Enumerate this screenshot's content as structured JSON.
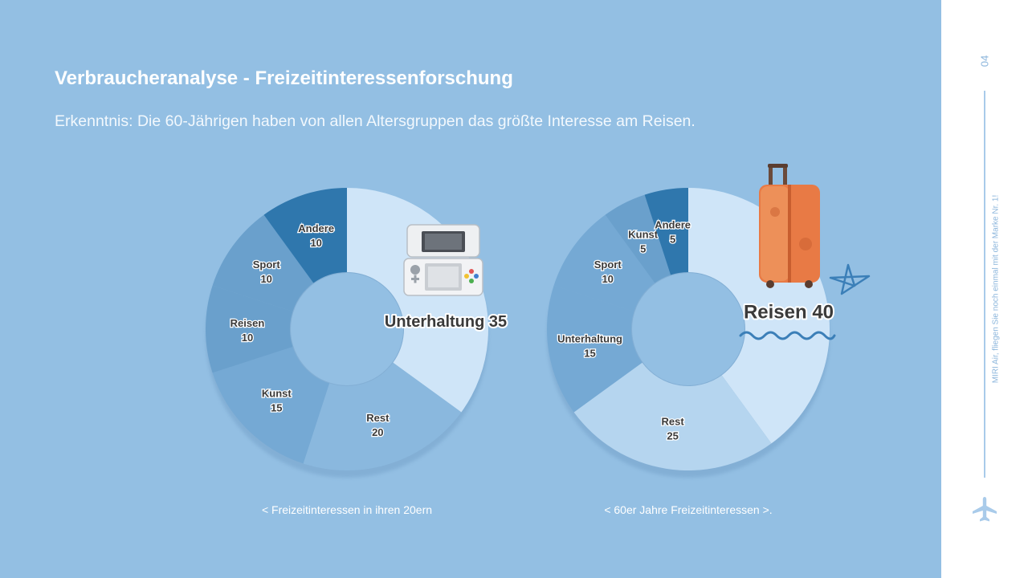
{
  "slide": {
    "title": "Verbraucheranalyse - Freizeitinteressenforschung",
    "subtitle": "Erkenntnis: Die 60-Jährigen haben von allen Altersgruppen das größte Interesse am Reisen.",
    "page_number": "04",
    "tagline": "MIRI Air, fliegen Sie noch einmal mit der Marke Nr. 1!",
    "colors": {
      "background": "#93bfe3",
      "sidebar": "#ffffff",
      "shades": [
        "#cfe5f8",
        "#b5d5ef",
        "#8ab8de",
        "#75a9d4",
        "#6aa0cc",
        "#2f77ad"
      ]
    },
    "icons": [
      "game-console-icon",
      "suitcase-icon",
      "star-doodle-icon",
      "wave-doodle-icon",
      "airplane-icon"
    ]
  },
  "chart_data": [
    {
      "type": "pie",
      "title": "",
      "caption": "< Freizeitinteressen in ihren 20ern",
      "slices": [
        {
          "label": "Unterhaltung",
          "value": 35
        },
        {
          "label": "Rest",
          "value": 20
        },
        {
          "label": "Kunst",
          "value": 15
        },
        {
          "label": "Reisen",
          "value": 10
        },
        {
          "label": "Sport",
          "value": 10
        },
        {
          "label": "Andere",
          "value": 10
        }
      ],
      "highlight": {
        "text": "Unterhaltung 35"
      }
    },
    {
      "type": "pie",
      "title": "",
      "caption": "< 60er Jahre Freizeitinteressen >.",
      "slices": [
        {
          "label": "Reisen",
          "value": 40
        },
        {
          "label": "Rest",
          "value": 25
        },
        {
          "label": "Unterhaltung",
          "value": 15
        },
        {
          "label": "Sport",
          "value": 10
        },
        {
          "label": "Kunst",
          "value": 5
        },
        {
          "label": "Andere",
          "value": 5
        }
      ],
      "highlight": {
        "text": "Reisen 40"
      }
    }
  ]
}
